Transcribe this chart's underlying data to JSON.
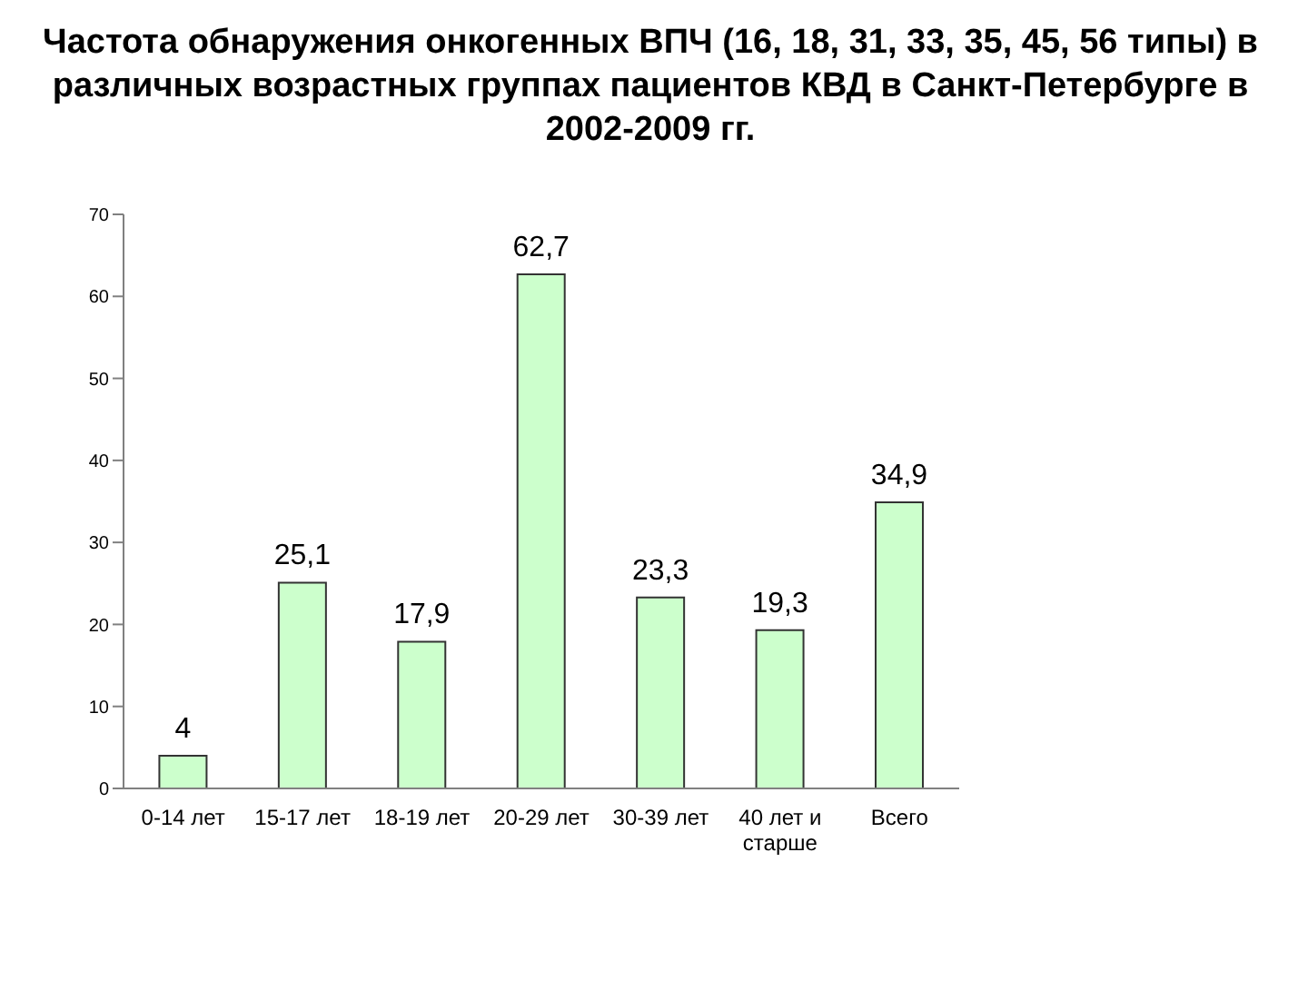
{
  "chart_data": {
    "type": "bar",
    "title": "Частота обнаружения онкогенных ВПЧ (16, 18, 31, 33, 35, 45, 56 типы) в различных возрастных группах пациентов КВД в Санкт-Петербурге в 2002-2009 гг.",
    "categories": [
      "0-14 лет",
      "15-17 лет",
      "18-19 лет",
      "20-29 лет",
      "30-39 лет",
      "40 лет и старше",
      "Всего"
    ],
    "values": [
      4,
      25.1,
      17.9,
      62.7,
      23.3,
      19.3,
      34.9
    ],
    "value_labels": [
      "4",
      "25,1",
      "17,9",
      "62,7",
      "23,3",
      "19,3",
      "34,9"
    ],
    "color": "#ccffcc",
    "ylim": [
      0,
      70
    ],
    "yticks": [
      0,
      10,
      20,
      30,
      40,
      50,
      60,
      70
    ],
    "grid": false,
    "legend": false
  }
}
